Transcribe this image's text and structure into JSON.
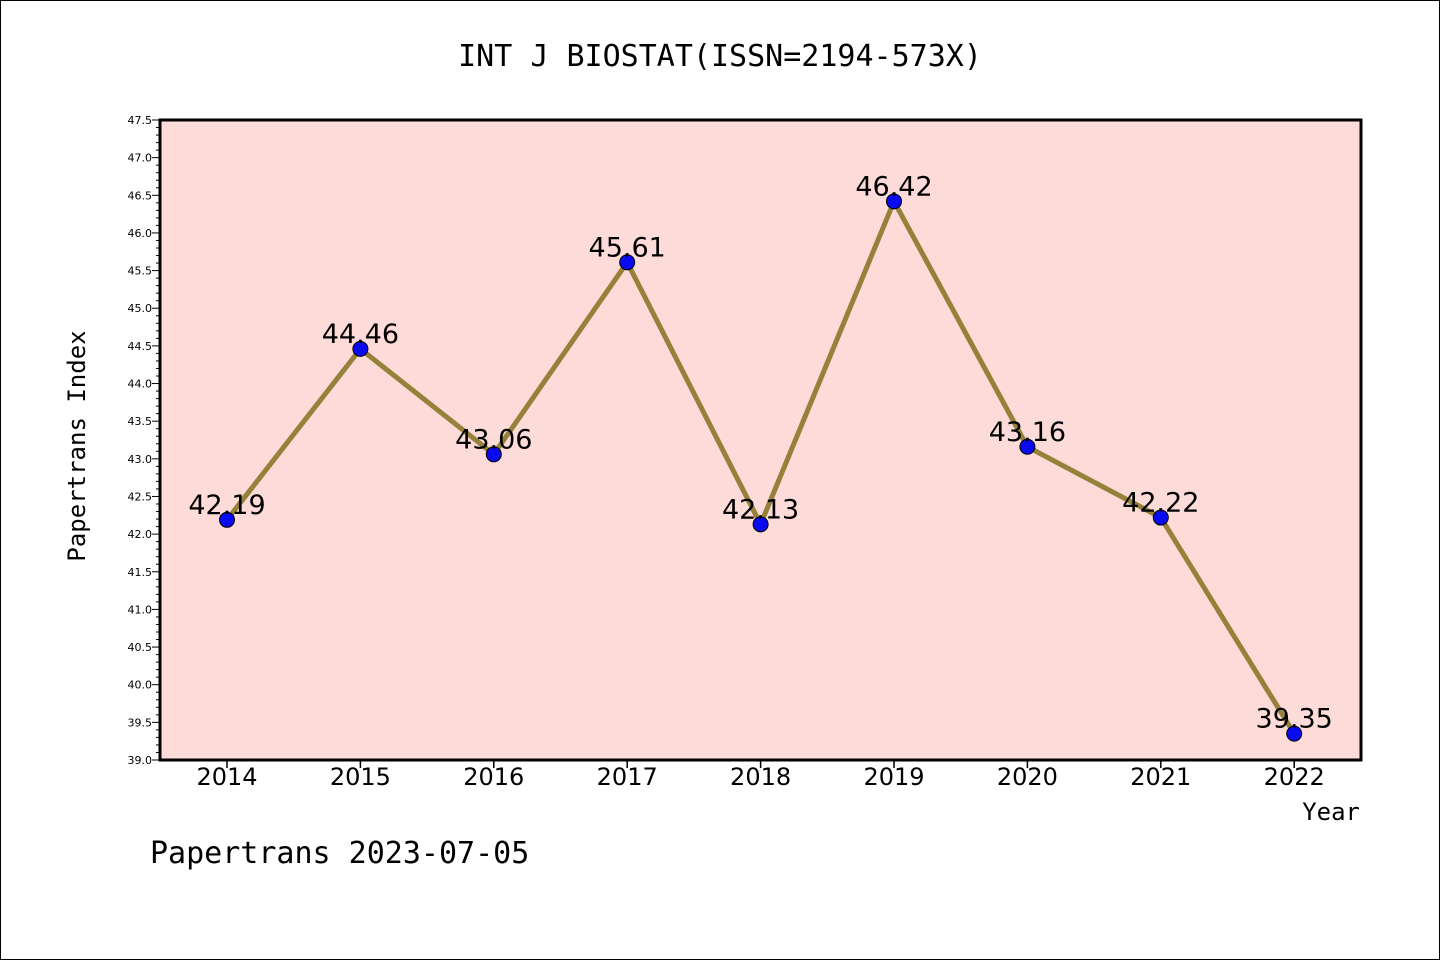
{
  "chart_data": {
    "type": "line",
    "title": "INT J BIOSTAT(ISSN=2194-573X)",
    "xlabel": "Year",
    "ylabel": "Papertrans Index",
    "categories": [
      "2014",
      "2015",
      "2016",
      "2017",
      "2018",
      "2019",
      "2020",
      "2021",
      "2022"
    ],
    "series": [
      {
        "values": [
          42.19,
          44.46,
          43.06,
          45.61,
          42.13,
          46.42,
          43.16,
          42.22,
          39.35
        ]
      }
    ],
    "data_labels": [
      "42.19",
      "44.46",
      "43.06",
      "45.61",
      "42.13",
      "46.42",
      "43.16",
      "42.22",
      "39.35"
    ],
    "ylim": [
      39.0,
      47.5
    ],
    "yticks": [
      "39.0",
      "39.5",
      "40.0",
      "40.5",
      "41.0",
      "41.5",
      "42.0",
      "42.5",
      "43.0",
      "43.5",
      "44.0",
      "44.5",
      "45.0",
      "45.5",
      "46.0",
      "46.5",
      "47.0",
      "47.5"
    ],
    "grid": false,
    "colors": {
      "plot_bg": "#fddbd8",
      "line": "#958139",
      "marker": "#0a0af0"
    }
  },
  "footer": "Papertrans 2023-07-05"
}
